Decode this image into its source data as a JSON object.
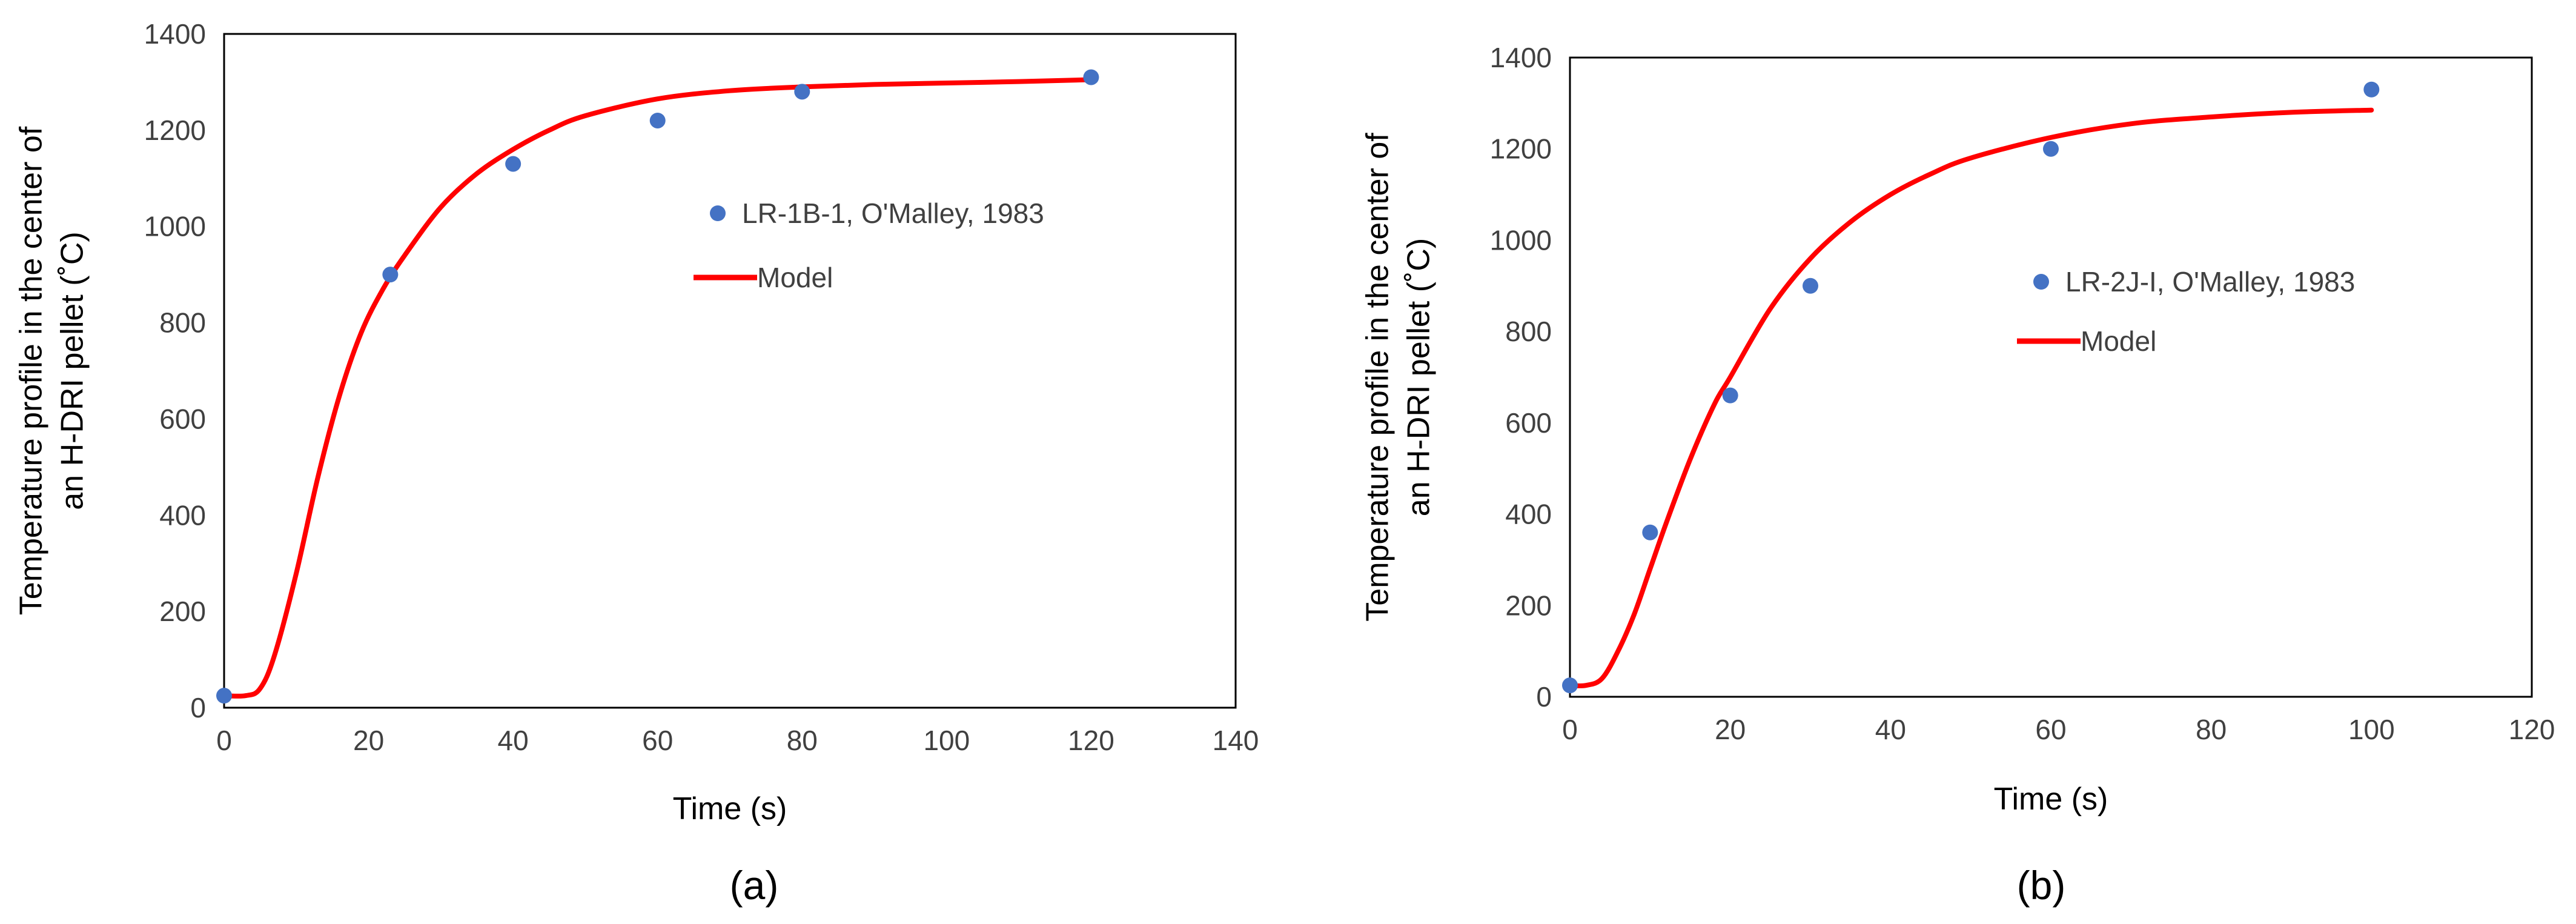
{
  "colors": {
    "marker": "#4472C4",
    "model_line": "#FF0000",
    "axis": "#000000",
    "tick_text": "#404040"
  },
  "chart_data": [
    {
      "type": "scatter",
      "panel_label": "(a)",
      "xlabel": "Time (s)",
      "ylabel_lines": [
        "Temperature profile in the center of",
        "an H-DRI pellet (˚C)"
      ],
      "xlim": [
        0,
        140
      ],
      "ylim": [
        0,
        1400
      ],
      "xticks": [
        0,
        20,
        40,
        60,
        80,
        100,
        120,
        140
      ],
      "yticks": [
        0,
        200,
        400,
        600,
        800,
        1000,
        1200,
        1400
      ],
      "grid": false,
      "legend_placement": "center-right",
      "series": [
        {
          "name": "LR-1B-1, O'Malley, 1983",
          "kind": "points",
          "x": [
            0,
            23,
            40,
            60,
            80,
            120
          ],
          "y": [
            25,
            900,
            1130,
            1220,
            1280,
            1310
          ]
        },
        {
          "name": "Model",
          "kind": "line",
          "x": [
            0,
            3,
            5,
            7,
            10,
            13,
            16,
            19,
            22,
            25,
            30,
            35,
            40,
            45,
            50,
            60,
            70,
            80,
            90,
            100,
            110,
            120
          ],
          "y": [
            25,
            25,
            40,
            110,
            280,
            480,
            650,
            780,
            870,
            940,
            1040,
            1110,
            1160,
            1200,
            1230,
            1265,
            1282,
            1290,
            1295,
            1298,
            1301,
            1305
          ]
        }
      ]
    },
    {
      "type": "scatter",
      "panel_label": "(b)",
      "xlabel": "Time (s)",
      "ylabel_lines": [
        "Temperature profile in the center of",
        "an H-DRI pellet (˚C)"
      ],
      "xlim": [
        0,
        120
      ],
      "ylim": [
        0,
        1400
      ],
      "xticks": [
        0,
        20,
        40,
        60,
        80,
        100,
        120
      ],
      "yticks": [
        0,
        200,
        400,
        600,
        800,
        1000,
        1200,
        1400
      ],
      "grid": false,
      "legend_placement": "center-right",
      "series": [
        {
          "name": "LR-2J-I, O'Malley, 1983",
          "kind": "points",
          "x": [
            0,
            10,
            20,
            30,
            60,
            100
          ],
          "y": [
            25,
            360,
            660,
            900,
            1200,
            1330
          ]
        },
        {
          "name": "Model",
          "kind": "line",
          "x": [
            0,
            2,
            4,
            6,
            8,
            10,
            12,
            15,
            18,
            20,
            25,
            30,
            35,
            40,
            45,
            50,
            60,
            70,
            80,
            90,
            100
          ],
          "y": [
            25,
            25,
            40,
            100,
            180,
            280,
            380,
            520,
            640,
            700,
            850,
            960,
            1040,
            1100,
            1145,
            1180,
            1225,
            1255,
            1270,
            1280,
            1285
          ]
        }
      ]
    }
  ]
}
